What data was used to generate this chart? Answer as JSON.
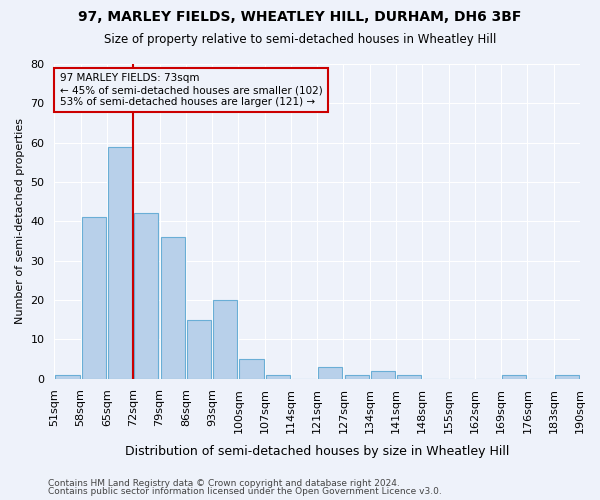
{
  "title": "97, MARLEY FIELDS, WHEATLEY HILL, DURHAM, DH6 3BF",
  "subtitle": "Size of property relative to semi-detached houses in Wheatley Hill",
  "xlabel": "Distribution of semi-detached houses by size in Wheatley Hill",
  "ylabel": "Number of semi-detached properties",
  "footnote1": "Contains HM Land Registry data © Crown copyright and database right 2024.",
  "footnote2": "Contains public sector information licensed under the Open Government Licence v3.0.",
  "bin_labels": [
    "51sqm",
    "58sqm",
    "65sqm",
    "72sqm",
    "79sqm",
    "86sqm",
    "93sqm",
    "100sqm",
    "107sqm",
    "114sqm",
    "121sqm",
    "127sqm",
    "134sqm",
    "141sqm",
    "148sqm",
    "155sqm",
    "162sqm",
    "169sqm",
    "176sqm",
    "183sqm",
    "190sqm"
  ],
  "values": [
    1,
    41,
    59,
    42,
    36,
    15,
    20,
    5,
    1,
    0,
    3,
    1,
    2,
    1,
    0,
    0,
    0,
    1,
    0,
    1
  ],
  "bar_color": "#b8d0ea",
  "bar_edge_color": "#6aaed6",
  "annotation_label": "97 MARLEY FIELDS: 73sqm",
  "annotation_smaller": "← 45% of semi-detached houses are smaller (102)",
  "annotation_larger": "53% of semi-detached houses are larger (121) →",
  "vline_color": "#cc0000",
  "annotation_box_edgecolor": "#cc0000",
  "ylim": [
    0,
    80
  ],
  "yticks": [
    0,
    10,
    20,
    30,
    40,
    50,
    60,
    70,
    80
  ],
  "background_color": "#eef2fa",
  "grid_color": "#ffffff",
  "title_fontsize": 10,
  "subtitle_fontsize": 8.5,
  "ylabel_fontsize": 8,
  "xlabel_fontsize": 9,
  "tick_fontsize": 8,
  "annotation_fontsize": 7.5,
  "footnote_fontsize": 6.5
}
